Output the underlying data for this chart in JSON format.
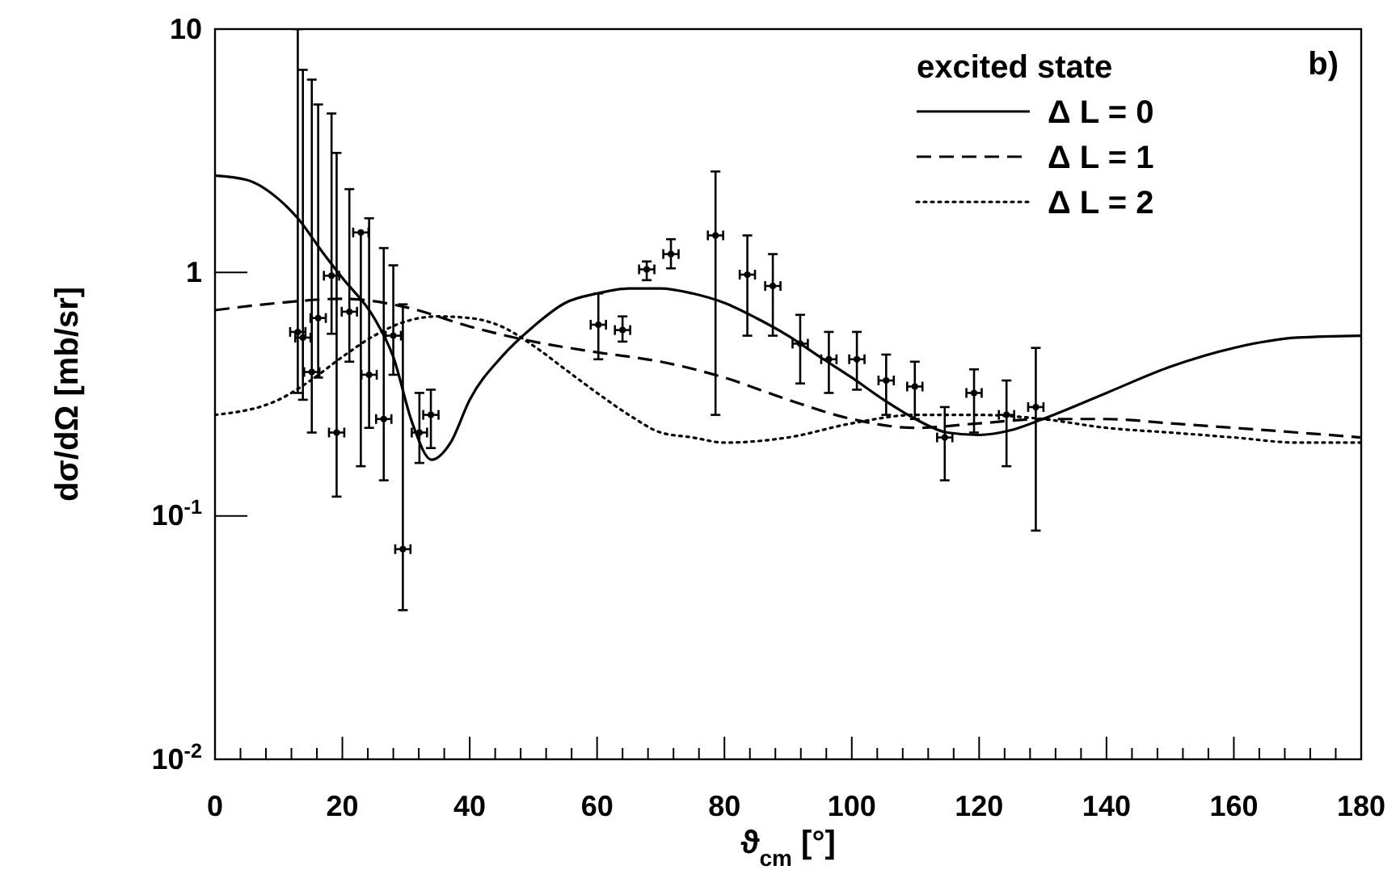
{
  "chart_data": {
    "type": "scatter",
    "xlabel": "ϑ$_{cm}$ [°]",
    "ylabel": "dσ/dΩ [mb/sr]",
    "legend_title": "excited state",
    "legend": "top right",
    "log": "y",
    "grid": false,
    "annotations": [
      "b)"
    ],
    "xlim": [
      0,
      180
    ],
    "ylim": [
      0.01,
      10
    ],
    "xticks": [
      0,
      {
        "value": 4,
        "label": null
      },
      {
        "value": 8,
        "label": null
      },
      {
        "value": 12,
        "label": null
      },
      {
        "value": 16,
        "label": null
      },
      20,
      {
        "value": 24,
        "label": null
      },
      {
        "value": 28,
        "label": null
      },
      {
        "value": 32,
        "label": null
      },
      {
        "value": 36,
        "label": null
      },
      40,
      {
        "value": 44,
        "label": null
      },
      {
        "value": 48,
        "label": null
      },
      {
        "value": 52,
        "label": null
      },
      {
        "value": 56,
        "label": null
      },
      60,
      {
        "value": 64,
        "label": null
      },
      {
        "value": 68,
        "label": null
      },
      {
        "value": 72,
        "label": null
      },
      {
        "value": 76,
        "label": null
      },
      80,
      {
        "value": 84,
        "label": null
      },
      {
        "value": 88,
        "label": null
      },
      {
        "value": 92,
        "label": null
      },
      {
        "value": 96,
        "label": null
      },
      100,
      {
        "value": 104,
        "label": null
      },
      {
        "value": 108,
        "label": null
      },
      {
        "value": 112,
        "label": null
      },
      {
        "value": 116,
        "label": null
      },
      120,
      {
        "value": 124,
        "label": null
      },
      {
        "value": 128,
        "label": null
      },
      {
        "value": 132,
        "label": null
      },
      {
        "value": 136,
        "label": null
      },
      140,
      {
        "value": 144,
        "label": null
      },
      {
        "value": 148,
        "label": null
      },
      {
        "value": 152,
        "label": null
      },
      {
        "value": 156,
        "label": null
      },
      160,
      {
        "value": 164,
        "label": null
      },
      {
        "value": 168,
        "label": null
      },
      {
        "value": 172,
        "label": null
      },
      {
        "value": 176,
        "label": null
      },
      180
    ],
    "yticks": [
      {
        "value": 0.01,
        "label": "10$^{-2}$"
      },
      {
        "value": 0.1,
        "label": "10$^{-1}$"
      },
      1,
      10
    ],
    "series": [
      {
        "type": "scatter",
        "color": "#000000",
        "marker": "circle",
        "x": [
          13.0,
          13.8,
          15.2,
          16.2,
          18.3,
          19.1,
          21.1,
          22.9,
          24.2,
          26.5,
          28.0,
          29.5,
          32.1,
          33.9,
          60.2,
          64.0,
          67.8,
          71.6,
          78.6,
          83.6,
          87.6,
          91.9,
          96.4,
          100.8,
          105.4,
          109.9,
          114.6,
          119.2,
          124.3,
          128.9
        ],
        "values": [
          0.57,
          0.54,
          0.39,
          0.65,
          0.97,
          0.22,
          0.69,
          1.46,
          0.38,
          0.25,
          0.55,
          0.073,
          0.22,
          0.26,
          0.61,
          0.58,
          1.03,
          1.19,
          1.42,
          0.98,
          0.88,
          0.51,
          0.44,
          0.44,
          0.36,
          0.34,
          0.21,
          0.32,
          0.26,
          0.28
        ],
        "errors": [
          [
            0.32,
            10
          ],
          [
            0.3,
            6.8
          ],
          [
            0.22,
            6.2
          ],
          [
            0.37,
            4.9
          ],
          [
            0.56,
            4.5
          ],
          [
            0.12,
            3.1
          ],
          [
            0.43,
            2.2
          ],
          [
            0.16,
            1.46
          ],
          [
            0.23,
            1.67
          ],
          [
            0.14,
            1.26
          ],
          [
            0.38,
            1.07
          ],
          [
            0.041,
            0.74
          ],
          [
            0.165,
            0.32
          ],
          [
            0.19,
            0.33
          ],
          [
            0.44,
            0.82
          ],
          [
            0.52,
            0.66
          ],
          [
            0.93,
            1.11
          ],
          [
            1.04,
            1.37
          ],
          [
            0.26,
            2.6
          ],
          [
            0.55,
            1.42
          ],
          [
            0.55,
            1.19
          ],
          [
            0.35,
            0.67
          ],
          [
            0.32,
            0.57
          ],
          [
            0.33,
            0.57
          ],
          [
            0.26,
            0.46
          ],
          [
            0.25,
            0.43
          ],
          [
            0.14,
            0.28
          ],
          [
            0.22,
            0.4
          ],
          [
            0.16,
            0.36
          ],
          [
            0.087,
            0.49
          ]
        ],
        "xerrors": [
          1.2,
          1.2,
          1.2,
          1.2,
          1.2,
          1.2,
          1.2,
          1.2,
          1.2,
          1.2,
          1.2,
          1.2,
          1.2,
          1.2,
          1.2,
          1.2,
          1.2,
          1.2,
          1.2,
          1.2,
          1.2,
          1.2,
          1.2,
          1.2,
          1.2,
          1.2,
          1.2,
          1.2,
          1.2,
          1.2
        ]
      },
      {
        "type": "line",
        "name": "Δ L = 0",
        "color": "#000000",
        "line_style": "solid",
        "marker": "none",
        "x": [
          0,
          5,
          10,
          13,
          17,
          20,
          25,
          28,
          31,
          34,
          37,
          40,
          45,
          50,
          55,
          60,
          65,
          70,
          75,
          80,
          85,
          90,
          95,
          100,
          105,
          110,
          115,
          120,
          125,
          130,
          140,
          150,
          160,
          170,
          180
        ],
        "values": [
          2.5,
          2.4,
          2.0,
          1.67,
          1.2,
          0.95,
          0.65,
          0.45,
          0.24,
          0.17,
          0.2,
          0.3,
          0.45,
          0.6,
          0.75,
          0.82,
          0.86,
          0.86,
          0.82,
          0.75,
          0.65,
          0.55,
          0.45,
          0.37,
          0.3,
          0.25,
          0.22,
          0.215,
          0.225,
          0.25,
          0.32,
          0.41,
          0.49,
          0.54,
          0.55
        ]
      },
      {
        "type": "line",
        "name": "Δ L = 1",
        "color": "#000000",
        "line_style": "dashed",
        "marker": "none",
        "x": [
          0,
          10,
          20,
          30,
          40,
          50,
          60,
          70,
          80,
          90,
          100,
          110,
          120,
          130,
          140,
          150,
          160,
          170,
          180
        ],
        "values": [
          0.7,
          0.75,
          0.78,
          0.72,
          0.6,
          0.52,
          0.47,
          0.43,
          0.37,
          0.3,
          0.25,
          0.23,
          0.24,
          0.25,
          0.25,
          0.24,
          0.23,
          0.22,
          0.21
        ]
      },
      {
        "type": "line",
        "name": "Δ L = 2",
        "color": "#000000",
        "line_style": "dotted",
        "marker": "none",
        "x": [
          0,
          10,
          15,
          20,
          25,
          30,
          35,
          40,
          45,
          50,
          55,
          60,
          65,
          70,
          75,
          80,
          90,
          100,
          110,
          120,
          130,
          140,
          150,
          160,
          170,
          180
        ],
        "values": [
          0.26,
          0.3,
          0.36,
          0.45,
          0.55,
          0.63,
          0.66,
          0.65,
          0.6,
          0.5,
          0.4,
          0.32,
          0.26,
          0.22,
          0.21,
          0.2,
          0.21,
          0.24,
          0.26,
          0.26,
          0.25,
          0.23,
          0.22,
          0.21,
          0.2,
          0.2
        ]
      }
    ]
  }
}
